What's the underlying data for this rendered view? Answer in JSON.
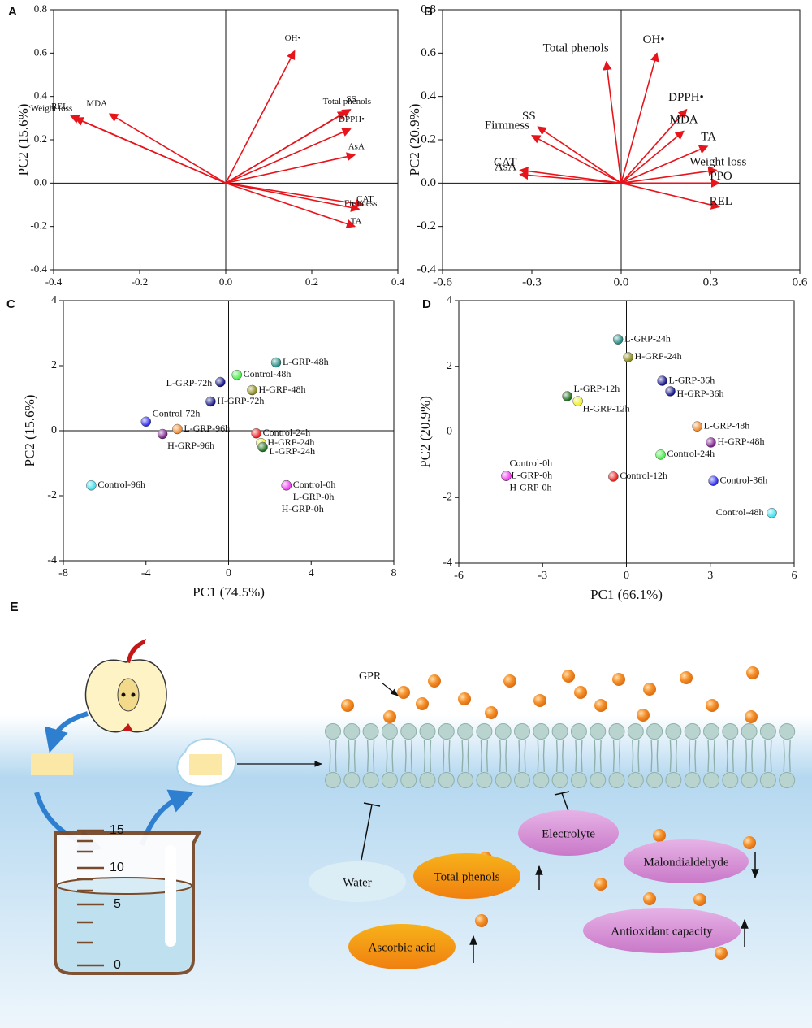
{
  "chart_data": [
    {
      "type": "biplot",
      "panel": "A",
      "ylabel": "PC2 (15.6%)",
      "color": "#e8141b",
      "xlim": [
        -0.4,
        0.4
      ],
      "xticks": [
        -0.4,
        -0.2,
        {
          "value": 0,
          "label": "0.0"
        },
        0.2,
        0.4
      ],
      "ylim": [
        -0.4,
        0.8
      ],
      "yticks": [
        -0.4,
        -0.2,
        {
          "value": 0,
          "label": "0.0"
        },
        0.2,
        0.4,
        0.6,
        0.8
      ],
      "labels": [
        "OH•",
        "Total phenols",
        "SS",
        "DPPH•",
        "AsA",
        "CAT",
        "Firmness",
        "TA",
        "MDA",
        "REL",
        "Weight loss"
      ],
      "x": [
        0.16,
        0.28,
        0.29,
        0.29,
        0.3,
        0.32,
        0.31,
        0.3,
        -0.27,
        -0.36,
        -0.35
      ],
      "values": [
        0.61,
        0.33,
        0.34,
        0.25,
        0.13,
        -0.1,
        -0.12,
        -0.2,
        0.32,
        0.31,
        0.3
      ]
    },
    {
      "type": "biplot",
      "panel": "B",
      "ylabel": "PC2 (20.9%)",
      "color": "#e8141b",
      "xlim": [
        -0.6,
        0.6
      ],
      "xticks": [
        -0.6,
        -0.3,
        {
          "value": 0,
          "label": "0.0"
        },
        0.3,
        0.6
      ],
      "ylim": [
        -0.4,
        0.8
      ],
      "yticks": [
        -0.4,
        -0.2,
        {
          "value": 0,
          "label": "0.0"
        },
        0.2,
        0.4,
        0.6,
        0.8
      ],
      "labels": [
        "Total phenols",
        "OH•",
        "DPPH•",
        "MDA",
        "TA",
        "Weight loss",
        "PPO",
        "REL",
        "SS",
        "Firmness",
        "CAT",
        "AsA"
      ],
      "x": [
        -0.05,
        0.12,
        0.22,
        0.21,
        0.29,
        0.32,
        0.33,
        0.33,
        -0.28,
        -0.3,
        -0.34,
        -0.34
      ],
      "values": [
        0.56,
        0.6,
        0.34,
        0.24,
        0.17,
        0.06,
        0.0,
        -0.11,
        0.26,
        0.22,
        0.06,
        0.04
      ]
    },
    {
      "type": "scatter",
      "panel": "C",
      "xlabel": "PC1 (74.5%)",
      "ylabel": "PC2 (15.6%)",
      "xlim": [
        -8,
        8
      ],
      "xticks": [
        -8,
        -4,
        0,
        4,
        8
      ],
      "ylim": [
        -4,
        4
      ],
      "yticks": [
        -4,
        -2,
        0,
        2,
        4
      ],
      "labels": [
        "L-GRP-48h",
        "Control-48h",
        "H-GRP-48h",
        "L-GRP-72h",
        "H-GRP-72h",
        "Control-72h",
        "L-GRP-96h",
        "H-GRP-96h",
        "Control-24h",
        "H-GRP-24h",
        "L-GRP-24h",
        "Control-0h",
        "L-GRP-0h",
        "H-GRP-0h",
        "Control-96h"
      ],
      "x": [
        2.3,
        0.4,
        1.14,
        -0.4,
        -0.87,
        -4.0,
        -2.48,
        -3.2,
        1.34,
        1.57,
        1.65,
        2.8,
        2.8,
        2.8,
        -6.65
      ],
      "values": [
        2.1,
        1.72,
        1.25,
        1.5,
        0.9,
        0.28,
        0.05,
        -0.1,
        -0.08,
        -0.38,
        -0.5,
        -1.68,
        -1.68,
        -1.68,
        -1.68
      ],
      "colors": [
        "#1f8a80",
        "#4cee4c",
        "#8a8a1e",
        "#14148a",
        "#14148a",
        "#2b2bf0",
        "#f08a2a",
        "#7a1e8a",
        "#e82020",
        "#f0f020",
        "#1e6e1e",
        "#f040f0",
        "#f040f0",
        "#f040f0",
        "#40e0f0"
      ]
    },
    {
      "type": "scatter",
      "panel": "D",
      "xlabel": "PC1 (66.1%)",
      "ylabel": "PC2 (20.9%)",
      "xlim": [
        -6,
        6
      ],
      "xticks": [
        -6,
        -3,
        0,
        3,
        6
      ],
      "ylim": [
        -4,
        4
      ],
      "yticks": [
        -4,
        -2,
        0,
        2,
        4
      ],
      "labels": [
        "L-GRP-24h",
        "H-GRP-24h",
        "L-GRP-36h",
        "H-GRP-36h",
        "L-GRP-12h",
        "H-GRP-12h",
        "L-GRP-48h",
        "H-GRP-48h",
        "Control-24h",
        "Control-12h",
        "Control-36h",
        "Control-48h",
        "Control-0h",
        "L-GRP-0h",
        "H-GRP-0h"
      ],
      "x": [
        -0.3,
        0.06,
        1.28,
        1.57,
        -2.12,
        -1.74,
        2.53,
        3.02,
        1.22,
        -0.47,
        3.11,
        5.2,
        -4.3,
        -4.3,
        -4.3
      ],
      "values": [
        2.82,
        2.28,
        1.56,
        1.24,
        1.09,
        0.94,
        0.17,
        -0.32,
        -0.69,
        -1.36,
        -1.49,
        -2.47,
        -1.34,
        -1.34,
        -1.34
      ],
      "colors": [
        "#1f8a80",
        "#8a8a1e",
        "#14148a",
        "#14148a",
        "#1e6e1e",
        "#f0f020",
        "#f08a2a",
        "#7a1e8a",
        "#4cee4c",
        "#e82020",
        "#2b2bf0",
        "#40e0f0",
        "#f040f0",
        "#f040f0",
        "#f040f0"
      ]
    }
  ],
  "diagram": {
    "label": "E",
    "gpr": "GPR",
    "beaker_scale": [
      "15",
      "10",
      "5",
      "0"
    ],
    "water": "Water",
    "total_phenols": "Total phenols",
    "electrolyte": "Electrolyte",
    "malondialdehyde": "Malondialdehyde",
    "antioxidant_capacity": "Antioxidant capacity",
    "ascorbic_acid": "Ascorbic acid"
  }
}
